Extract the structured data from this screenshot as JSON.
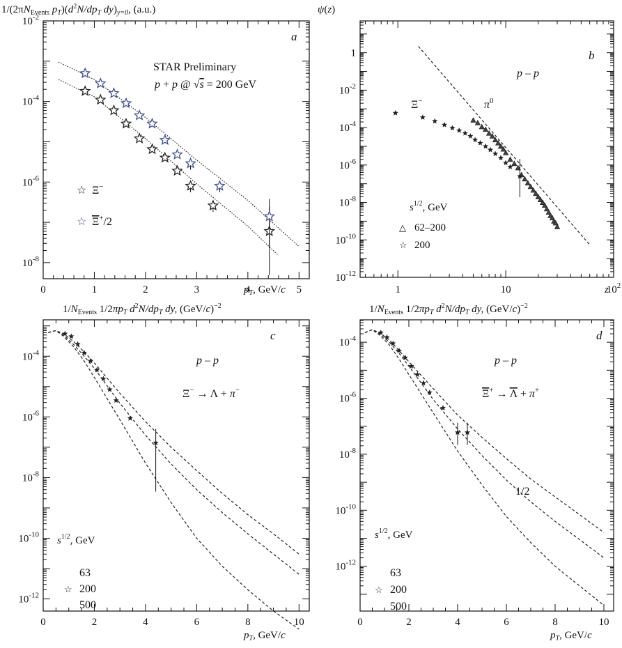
{
  "chart_data": [
    {
      "id": "a",
      "type": "scatter",
      "panel_letter": "a",
      "title": "1/(2πN_Events p_T)(d²N/dp_T dy)_{y=0}, (a.u.)",
      "xlabel": "p_T, GeV/c",
      "ylabel": "",
      "xlim": [
        0,
        5.2
      ],
      "ylim_log10": [
        -8.4,
        -2
      ],
      "x_ticks": [
        "0",
        "1",
        "2",
        "3",
        "4",
        "5"
      ],
      "y_ticks": [
        "10-2",
        "10-4",
        "10-6",
        "10-8"
      ],
      "annotations": [
        "STAR Preliminary",
        "p + p @ √s = 200 GeV"
      ],
      "series": [
        {
          "name": "Ξ⁻",
          "marker": "star",
          "color": "#222222",
          "x": [
            0.82,
            1.12,
            1.38,
            1.62,
            1.88,
            2.13,
            2.38,
            2.62,
            2.88,
            3.32,
            4.42
          ],
          "y": [
            0.00018,
            0.00011,
            6e-05,
            2.8e-05,
            1.2e-05,
            6.5e-06,
            4e-06,
            1.9e-06,
            8e-07,
            2.6e-07,
            6e-08
          ]
        },
        {
          "name": "Ξ̄⁺/2",
          "marker": "star",
          "color": "#3c4f9a",
          "x": [
            0.82,
            1.12,
            1.38,
            1.62,
            1.88,
            2.13,
            2.38,
            2.62,
            2.88,
            3.45,
            4.42
          ],
          "y": [
            0.0005,
            0.00028,
            0.00016,
            9e-05,
            4.5e-05,
            2.8e-05,
            1.1e-05,
            4.8e-06,
            2.9e-06,
            8e-07,
            1.4e-07
          ]
        }
      ],
      "fits": [
        {
          "x": [
            0.3,
            1,
            2,
            3,
            4,
            5
          ],
          "y": [
            0.00095,
            0.00035,
            4e-05,
            3.5e-06,
            3.5e-07,
            2.5e-08
          ]
        },
        {
          "x": [
            0.3,
            1,
            2,
            3,
            4,
            4.6
          ],
          "y": [
            0.00035,
            0.00013,
            1.2e-05,
            9e-07,
            8e-08,
            1.5e-08
          ]
        }
      ]
    },
    {
      "id": "b",
      "type": "scatter",
      "panel_letter": "b",
      "title": "ψ(z)",
      "xlabel": "z",
      "xlim_log10": [
        -0.35,
        2
      ],
      "ylim_log10": [
        -12,
        1.7
      ],
      "x_ticks": [
        "1",
        "10",
        "10²"
      ],
      "y_ticks": [
        "1",
        "10-2",
        "10-4",
        "10-6",
        "10-8",
        "10-10",
        "10-12"
      ],
      "annotations": [
        "p – p",
        "π⁰",
        "Ξ⁻"
      ],
      "legend_title": "s^{1/2}, GeV",
      "series": [
        {
          "name": "62–200",
          "marker": "triangle",
          "x": [
            5,
            5.5,
            6,
            6.5,
            7,
            7.5,
            8,
            8.5,
            9,
            9.5,
            10,
            11,
            12,
            13,
            14,
            15,
            16,
            17,
            18,
            19,
            20,
            21,
            22,
            23,
            24,
            25,
            26,
            27,
            28,
            29,
            30
          ],
          "y": [
            0.00025,
            0.00018,
            0.00011,
            8e-05,
            5e-05,
            3.5e-05,
            2.2e-05,
            1.5e-05,
            1e-05,
            7e-06,
            4.5e-06,
            2e-06,
            1.2e-06,
            7e-07,
            3e-07,
            1.8e-07,
            1.1e-07,
            7e-08,
            4.5e-08,
            3e-08,
            2e-08,
            1.4e-08,
            1e-08,
            7e-09,
            4.5e-09,
            3e-09,
            2e-09,
            1.5e-09,
            1e-09,
            8e-10,
            5e-10
          ]
        },
        {
          "name": "200",
          "marker": "star",
          "x": [
            0.95,
            1.7,
            2.2,
            2.7,
            3.2,
            3.7,
            4.2,
            4.7,
            5.2,
            5.8,
            6.5,
            7.2,
            8,
            9,
            10,
            11,
            13.5
          ],
          "y": [
            0.0006,
            0.00035,
            0.00022,
            0.00014,
            9.5e-05,
            7e-05,
            5e-05,
            3.5e-05,
            2.2e-05,
            1.5e-05,
            1e-05,
            6.5e-06,
            4e-06,
            2.4e-06,
            1.3e-06,
            8e-07,
            2.5e-07
          ]
        }
      ],
      "line": {
        "x": [
          1.55,
          60
        ],
        "y": [
          2.2,
          5.5e-11
        ]
      }
    },
    {
      "id": "c",
      "type": "line",
      "panel_letter": "c",
      "title": "1/N_Events 1/2πp_T d²N/dp_T dy, (GeV/c)⁻²",
      "xlabel": "p_T, GeV/c",
      "xlim": [
        0,
        10.4
      ],
      "ylim_log10": [
        -12.4,
        -2.8
      ],
      "x_ticks": [
        "0",
        "2",
        "4",
        "6",
        "8",
        "10"
      ],
      "y_ticks": [
        "10-4",
        "10-6",
        "10-8",
        "10-10",
        "10-12"
      ],
      "annotations": [
        "p – p",
        "Ξ⁻ → Λ + π⁻"
      ],
      "legend_title": "s^{1/2}, GeV",
      "legend": [
        "63",
        "200",
        "500"
      ],
      "curves": [
        {
          "name": "500",
          "x": [
            0.2,
            0.5,
            0.8,
            1.2,
            1.6,
            2,
            3,
            4,
            5,
            6,
            7,
            8,
            9,
            10
          ],
          "y": [
            0.0006,
            0.0007,
            0.00055,
            0.0003,
            0.00014,
            6e-05,
            6e-06,
            7e-07,
            1e-07,
            1.7e-08,
            3e-09,
            6e-10,
            1.4e-10,
            3e-11
          ]
        },
        {
          "name": "200",
          "x": [
            0.2,
            0.5,
            0.8,
            1.2,
            1.6,
            2,
            3,
            4,
            5,
            6,
            7,
            8,
            9,
            10
          ],
          "y": [
            0.0006,
            0.0007,
            0.0005,
            0.00024,
            0.0001,
            4e-05,
            2.8e-06,
            2.5e-07,
            2.8e-08,
            4e-09,
            7e-10,
            1.4e-10,
            3e-11,
            6.5e-12
          ]
        },
        {
          "name": "63",
          "x": [
            0.2,
            0.5,
            0.8,
            1.2,
            1.6,
            2,
            3,
            4,
            5,
            6,
            7,
            8,
            9,
            10
          ],
          "y": [
            0.0006,
            0.0007,
            0.00045,
            0.0002,
            7e-05,
            2e-05,
            8e-07,
            3e-08,
            1.5e-09,
            1e-10,
            1.2e-11,
            2e-12,
            4e-13,
            1e-13
          ]
        }
      ],
      "points": {
        "name": "200",
        "x": [
          0.85,
          1.1,
          1.35,
          1.6,
          1.85,
          2.1,
          2.35,
          2.6,
          2.85,
          3.4,
          4.4
        ],
        "y": [
          0.00055,
          0.00045,
          0.00025,
          0.00013,
          7e-05,
          3.5e-05,
          1.8e-05,
          8e-06,
          3.5e-06,
          9e-07,
          1.4e-07
        ]
      }
    },
    {
      "id": "d",
      "type": "line",
      "panel_letter": "d",
      "title": "1/N_Events 1/2πp_T d²N/dp_T dy, (GeV/c)⁻²",
      "xlabel": "p_T, GeV/c",
      "xlim": [
        0,
        10.4
      ],
      "ylim_log10": [
        -13.6,
        -3.2
      ],
      "x_ticks": [
        "0",
        "2",
        "4",
        "6",
        "8",
        "10"
      ],
      "y_ticks": [
        "10-4",
        "10-6",
        "10-8",
        "10-10",
        "10-12"
      ],
      "annotations": [
        "p – p",
        "Ξ̄⁺ → Λ̄ + π⁺",
        "1/2"
      ],
      "legend_title": "s^{1/2}, GeV",
      "legend": [
        "63",
        "200",
        "500"
      ],
      "curves": [
        {
          "name": "500",
          "x": [
            0.2,
            0.5,
            0.8,
            1.2,
            1.6,
            2,
            3,
            4,
            5,
            6,
            7,
            8,
            9,
            10
          ],
          "y": [
            0.00022,
            0.00028,
            0.00022,
            0.00012,
            5e-05,
            2e-05,
            2.2e-06,
            2.5e-07,
            4e-08,
            7e-09,
            1.3e-09,
            3e-10,
            7e-11,
            1.6e-11
          ]
        },
        {
          "name": "200",
          "x": [
            0.2,
            0.5,
            0.8,
            1.2,
            1.6,
            2,
            3,
            4,
            5,
            6,
            7,
            8,
            9,
            10
          ],
          "y": [
            0.00022,
            0.00028,
            0.0002,
            0.0001,
            4e-05,
            1.4e-05,
            9e-07,
            8e-08,
            9e-09,
            1.2e-09,
            2e-10,
            4e-11,
            9e-12,
            2e-12
          ]
        },
        {
          "name": "63",
          "x": [
            0.2,
            0.5,
            0.8,
            1.2,
            1.6,
            2,
            3,
            4,
            5,
            6,
            7,
            8,
            9,
            10
          ],
          "y": [
            0.00022,
            0.00028,
            0.00018,
            8e-05,
            2.5e-05,
            7e-06,
            3e-07,
            1.3e-08,
            8e-10,
            6e-11,
            7e-12,
            1e-12,
            2e-13,
            4e-14
          ]
        }
      ],
      "points": {
        "name": "200",
        "x": [
          0.85,
          1.1,
          1.35,
          1.6,
          1.85,
          2.1,
          2.35,
          2.6,
          2.85,
          3.4,
          4.0,
          4.4
        ],
        "y": [
          0.00022,
          0.00015,
          9e-05,
          5e-05,
          2.8e-05,
          1.4e-05,
          7e-06,
          3.5e-06,
          1.6e-06,
          4.5e-07,
          6e-08,
          6e-08
        ]
      }
    }
  ]
}
